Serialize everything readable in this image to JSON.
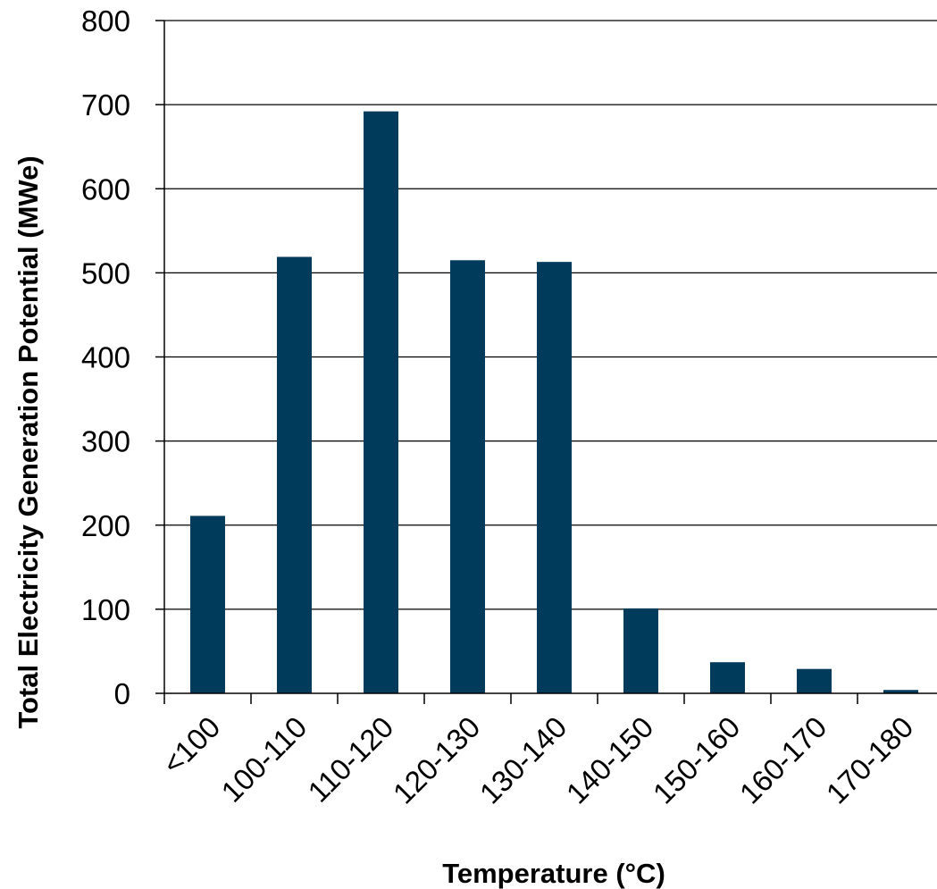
{
  "chart_data": {
    "type": "bar",
    "title": "",
    "xlabel": "Temperature (°C)",
    "ylabel": "Total Electricity Generation Potential (MWe)",
    "categories": [
      "<100",
      "100-110",
      "110-120",
      "120-130",
      "130-140",
      "140-150",
      "150-160",
      "160-170",
      "170-180"
    ],
    "values": [
      211,
      519,
      692,
      515,
      513,
      101,
      37,
      29,
      4
    ],
    "ylim": [
      0,
      800
    ],
    "yticks": [
      0,
      100,
      200,
      300,
      400,
      500,
      600,
      700,
      800
    ],
    "grid": true,
    "legend": "none",
    "colors": {
      "bar": "#003B5C",
      "grid": "#000000",
      "axis": "#000000"
    }
  }
}
